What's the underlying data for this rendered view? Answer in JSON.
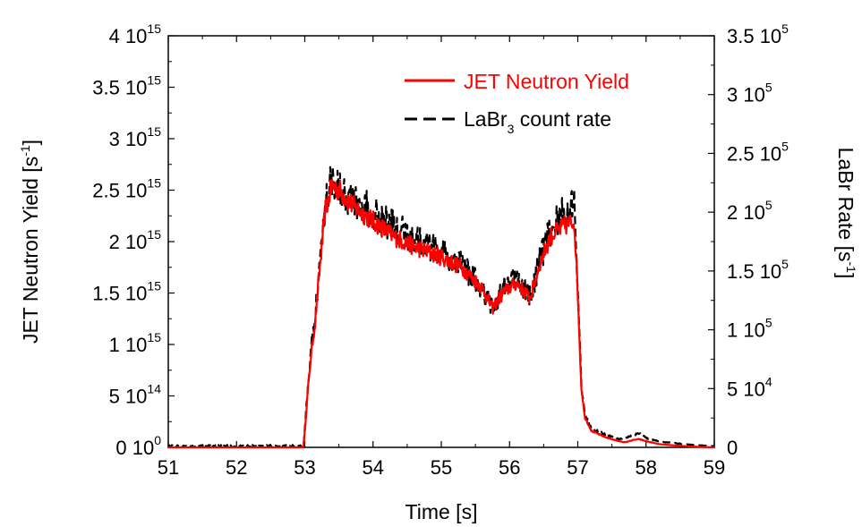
{
  "chart_data": {
    "type": "line",
    "xlabel": "Time [s]",
    "xlim": [
      51,
      59
    ],
    "x_ticks": [
      51,
      52,
      53,
      54,
      55,
      56,
      57,
      58,
      59
    ],
    "ylabel_left": {
      "text": "JET Neutron Yield [s",
      "sup": "-1",
      "tail": "]"
    },
    "ylabel_right": {
      "text": "LaBr Rate [s",
      "sup": "-1",
      "tail": "]"
    },
    "ylim_left": [
      0,
      4000000000000000.0
    ],
    "ylim_right": [
      0,
      350000
    ],
    "y_ticks_left": [
      {
        "value": 0,
        "base": "0 10",
        "exp": "0"
      },
      {
        "value": 500000000000000.0,
        "base": "5 10",
        "exp": "14"
      },
      {
        "value": 1000000000000000.0,
        "base": "1 10",
        "exp": "15"
      },
      {
        "value": 1500000000000000.0,
        "base": "1.5 10",
        "exp": "15"
      },
      {
        "value": 2000000000000000.0,
        "base": "2 10",
        "exp": "15"
      },
      {
        "value": 2500000000000000.0,
        "base": "2.5 10",
        "exp": "15"
      },
      {
        "value": 3000000000000000.0,
        "base": "3 10",
        "exp": "15"
      },
      {
        "value": 3500000000000000.0,
        "base": "3.5 10",
        "exp": "15"
      },
      {
        "value": 4000000000000000.0,
        "base": "4 10",
        "exp": "15"
      }
    ],
    "y_ticks_right": [
      {
        "value": 0,
        "base": "0",
        "exp": ""
      },
      {
        "value": 50000,
        "base": "5 10",
        "exp": "4"
      },
      {
        "value": 100000,
        "base": "1 10",
        "exp": "5"
      },
      {
        "value": 150000,
        "base": "1.5 10",
        "exp": "5"
      },
      {
        "value": 200000,
        "base": "2 10",
        "exp": "5"
      },
      {
        "value": 250000,
        "base": "2.5 10",
        "exp": "5"
      },
      {
        "value": 300000,
        "base": "3 10",
        "exp": "5"
      },
      {
        "value": 350000,
        "base": "3.5 10",
        "exp": "5"
      }
    ],
    "grid": false,
    "legend_position": "top-right",
    "series": [
      {
        "name": "JET Neutron Yield",
        "label_main": "JET Neutron Yield",
        "label_sub": "",
        "label_tail": "",
        "axis": "left",
        "color": "#ff0000",
        "style": "solid",
        "x": [
          51.0,
          52.0,
          52.98,
          53.0,
          53.05,
          53.1,
          53.15,
          53.2,
          53.3,
          53.4,
          53.5,
          53.7,
          54.0,
          54.3,
          54.6,
          55.0,
          55.3,
          55.6,
          55.75,
          55.9,
          56.1,
          56.3,
          56.45,
          56.6,
          56.8,
          56.95,
          57.0,
          57.05,
          57.1,
          57.2,
          57.4,
          57.6,
          57.7,
          57.8,
          57.9,
          58.0,
          58.2,
          58.6,
          59.0
        ],
        "y": [
          0,
          0,
          0,
          150000000000000.0,
          600000000000000.0,
          950000000000000.0,
          1200000000000000.0,
          1600000000000000.0,
          2300000000000000.0,
          2550000000000000.0,
          2500000000000000.0,
          2350000000000000.0,
          2200000000000000.0,
          2050000000000000.0,
          1950000000000000.0,
          1850000000000000.0,
          1750000000000000.0,
          1550000000000000.0,
          1350000000000000.0,
          1500000000000000.0,
          1600000000000000.0,
          1450000000000000.0,
          1800000000000000.0,
          2050000000000000.0,
          2150000000000000.0,
          2200000000000000.0,
          1500000000000000.0,
          600000000000000.0,
          300000000000000.0,
          160000000000000.0,
          100000000000000.0,
          60000000000000.0,
          50000000000000.0,
          70000000000000.0,
          80000000000000.0,
          60000000000000.0,
          30000000000000.0,
          10000000000000.0,
          0
        ]
      },
      {
        "name": "LaBr3 count rate",
        "label_main": "LaBr",
        "label_sub": "3",
        "label_tail": " count rate",
        "axis": "right",
        "color": "#000000",
        "style": "dashed",
        "x": [
          51.0,
          52.0,
          52.98,
          53.0,
          53.05,
          53.1,
          53.15,
          53.2,
          53.3,
          53.4,
          53.5,
          53.7,
          54.0,
          54.3,
          54.6,
          55.0,
          55.3,
          55.6,
          55.75,
          55.9,
          56.1,
          56.3,
          56.45,
          56.6,
          56.8,
          56.95,
          57.0,
          57.05,
          57.1,
          57.2,
          57.4,
          57.6,
          57.7,
          57.8,
          57.9,
          58.0,
          58.2,
          58.6,
          59.0
        ],
        "y": [
          0,
          0,
          0,
          15000,
          55000,
          88000,
          110000,
          145000,
          210000,
          230000,
          222000,
          210000,
          200000,
          188000,
          178000,
          165000,
          155000,
          135000,
          118000,
          135000,
          145000,
          128000,
          160000,
          185000,
          200000,
          205000,
          140000,
          55000,
          28000,
          16000,
          11000,
          7000,
          8000,
          10000,
          12000,
          8000,
          5000,
          2500,
          1000
        ]
      }
    ]
  }
}
